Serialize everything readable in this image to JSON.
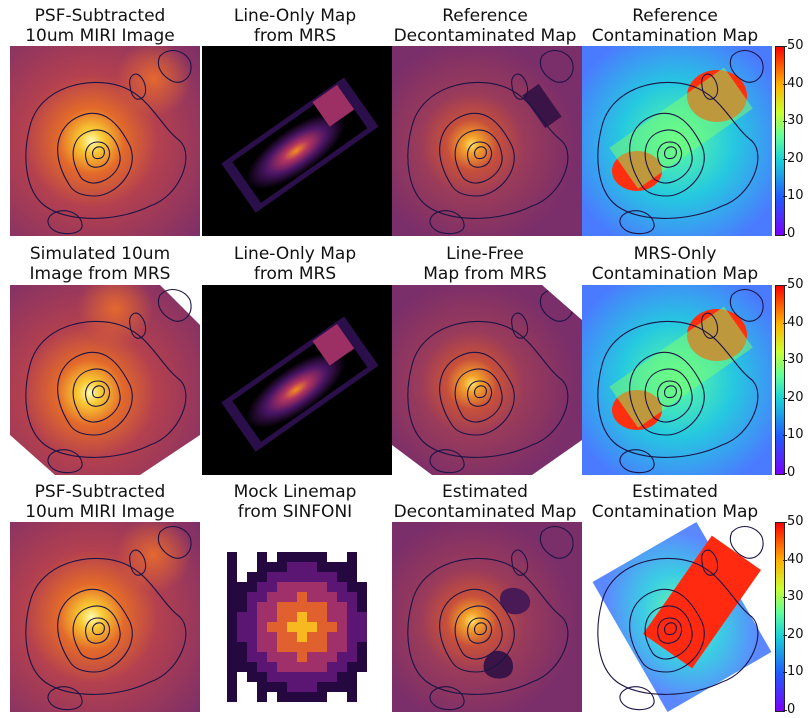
{
  "rows": [
    {
      "panels": [
        {
          "id": "r1c1",
          "title": "PSF-Subtracted\n10um MIRI Image",
          "kind": "miri"
        },
        {
          "id": "r1c2",
          "title": "Line-Only Map\nfrom MRS",
          "kind": "line"
        },
        {
          "id": "r1c3",
          "title": "Reference\nDecontaminated Map",
          "kind": "decon"
        },
        {
          "id": "r1c4",
          "title": "Reference\nContamination Map",
          "kind": "contam"
        }
      ]
    },
    {
      "panels": [
        {
          "id": "r2c1",
          "title": "Simulated 10um\nImage from MRS",
          "kind": "miri-rot"
        },
        {
          "id": "r2c2",
          "title": "Line-Only Map\nfrom MRS",
          "kind": "line"
        },
        {
          "id": "r2c3",
          "title": "Line-Free\nMap from MRS",
          "kind": "linefree"
        },
        {
          "id": "r2c4",
          "title": "MRS-Only\nContamination Map",
          "kind": "contam"
        }
      ]
    },
    {
      "panels": [
        {
          "id": "r3c1",
          "title": "PSF-Subtracted\n10um MIRI Image",
          "kind": "miri"
        },
        {
          "id": "r3c2",
          "title": "Mock Linemap\nfrom SINFONI",
          "kind": "sinfoni"
        },
        {
          "id": "r3c3",
          "title": "Estimated\nDecontaminated Map",
          "kind": "decon-est"
        },
        {
          "id": "r3c4",
          "title": "Estimated\nContamination Map",
          "kind": "contam-est"
        }
      ]
    }
  ],
  "colorbar": {
    "ticks": [
      "50",
      "40",
      "30",
      "20",
      "10",
      "0"
    ],
    "colors": [
      "#7a00ff",
      "#1f5bff",
      "#19d2d8",
      "#5dff9c",
      "#c9ff30",
      "#ffb000",
      "#ff0000"
    ]
  },
  "colors": {
    "inferno_bg": "#7a2e6a",
    "inferno_mid": "#c24a3c",
    "inferno_hot": "#f59a1f",
    "contour": "#1b1446",
    "black": "#000000"
  }
}
